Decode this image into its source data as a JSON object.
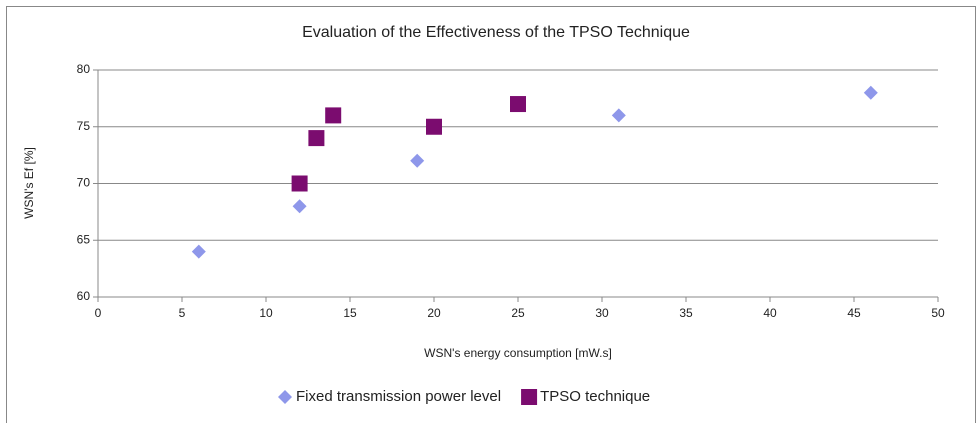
{
  "chart_data": {
    "type": "scatter",
    "title": "Evaluation of the Effectiveness of the TPSO Technique",
    "x_label": "WSN's energy consumption [mW.s]",
    "y_label": "WSN's Ef [%]",
    "xlim": [
      0,
      50
    ],
    "xticks": [
      0,
      5,
      10,
      15,
      20,
      25,
      30,
      35,
      40,
      45,
      50
    ],
    "ylim": [
      60,
      80
    ],
    "yticks": [
      60,
      65,
      70,
      75,
      80
    ],
    "grid": true,
    "legend": "bottom",
    "series": [
      {
        "name": "Fixed transmission power level",
        "color": "#8e97ea",
        "marker": "diamond",
        "x": [
          6,
          12,
          19,
          31,
          46
        ],
        "values": [
          64,
          68,
          72,
          76,
          78
        ]
      },
      {
        "name": "TPSO technique",
        "color": "#7b0c6f",
        "marker": "square",
        "x": [
          12,
          13,
          14,
          20,
          25
        ],
        "values": [
          70,
          74,
          76,
          75,
          77
        ]
      }
    ]
  }
}
